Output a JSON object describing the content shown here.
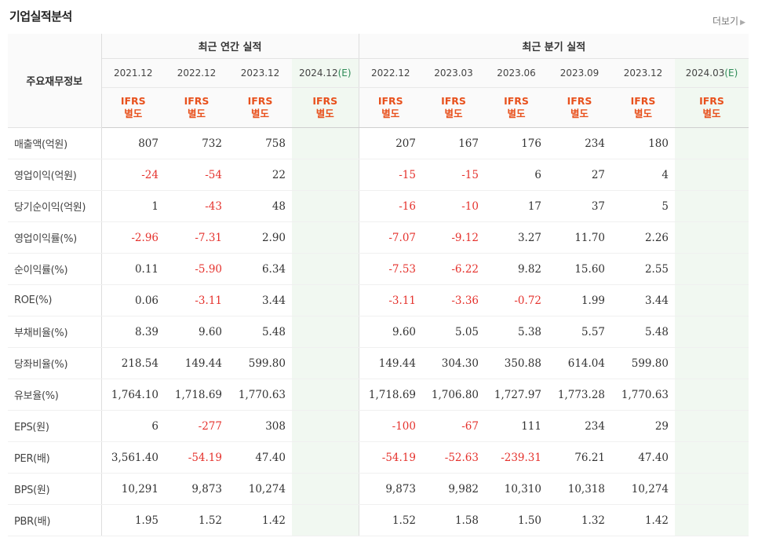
{
  "title": "기업실적분석",
  "more_label": "더보기",
  "header": {
    "row_label": "주요재무정보",
    "annual_group": "최근 연간 실적",
    "quarter_group": "최근 분기 실적",
    "periods": [
      {
        "date": "2021.12",
        "est": ""
      },
      {
        "date": "2022.12",
        "est": ""
      },
      {
        "date": "2023.12",
        "est": ""
      },
      {
        "date": "2024.12",
        "est": "(E)"
      },
      {
        "date": "2022.12",
        "est": ""
      },
      {
        "date": "2023.03",
        "est": ""
      },
      {
        "date": "2023.06",
        "est": ""
      },
      {
        "date": "2023.09",
        "est": ""
      },
      {
        "date": "2023.12",
        "est": ""
      },
      {
        "date": "2024.03",
        "est": "(E)"
      }
    ],
    "basis_line1": "IFRS",
    "basis_line2": "별도"
  },
  "rows": [
    {
      "label": "매출액(억원)",
      "values": [
        "807",
        "732",
        "758",
        "",
        "207",
        "167",
        "176",
        "234",
        "180",
        ""
      ]
    },
    {
      "label": "영업이익(억원)",
      "values": [
        "-24",
        "-54",
        "22",
        "",
        "-15",
        "-15",
        "6",
        "27",
        "4",
        ""
      ]
    },
    {
      "label": "당기순이익(억원)",
      "values": [
        "1",
        "-43",
        "48",
        "",
        "-16",
        "-10",
        "17",
        "37",
        "5",
        ""
      ]
    },
    {
      "label": "영업이익률(%)",
      "values": [
        "-2.96",
        "-7.31",
        "2.90",
        "",
        "-7.07",
        "-9.12",
        "3.27",
        "11.70",
        "2.26",
        ""
      ]
    },
    {
      "label": "순이익률(%)",
      "values": [
        "0.11",
        "-5.90",
        "6.34",
        "",
        "-7.53",
        "-6.22",
        "9.82",
        "15.60",
        "2.55",
        ""
      ]
    },
    {
      "label": "ROE(%)",
      "values": [
        "0.06",
        "-3.11",
        "3.44",
        "",
        "-3.11",
        "-3.36",
        "-0.72",
        "1.99",
        "3.44",
        ""
      ]
    },
    {
      "label": "부채비율(%)",
      "values": [
        "8.39",
        "9.60",
        "5.48",
        "",
        "9.60",
        "5.05",
        "5.38",
        "5.57",
        "5.48",
        ""
      ]
    },
    {
      "label": "당좌비율(%)",
      "values": [
        "218.54",
        "149.44",
        "599.80",
        "",
        "149.44",
        "304.30",
        "350.88",
        "614.04",
        "599.80",
        ""
      ]
    },
    {
      "label": "유보율(%)",
      "values": [
        "1,764.10",
        "1,718.69",
        "1,770.63",
        "",
        "1,718.69",
        "1,706.80",
        "1,727.97",
        "1,773.28",
        "1,770.63",
        ""
      ]
    },
    {
      "label": "EPS(원)",
      "values": [
        "6",
        "-277",
        "308",
        "",
        "-100",
        "-67",
        "111",
        "234",
        "29",
        ""
      ]
    },
    {
      "label": "PER(배)",
      "values": [
        "3,561.40",
        "-54.19",
        "47.40",
        "",
        "-54.19",
        "-52.63",
        "-239.31",
        "76.21",
        "47.40",
        ""
      ]
    },
    {
      "label": "BPS(원)",
      "values": [
        "10,291",
        "9,873",
        "10,274",
        "",
        "9,873",
        "9,982",
        "10,310",
        "10,318",
        "10,274",
        ""
      ]
    },
    {
      "label": "PBR(배)",
      "values": [
        "1.95",
        "1.52",
        "1.42",
        "",
        "1.52",
        "1.58",
        "1.50",
        "1.32",
        "1.42",
        ""
      ]
    }
  ],
  "colors": {
    "negative": "#e5322d",
    "basis": "#e8511d",
    "estimate_bg": "#f1f8f1",
    "estimate_mark": "#2e8b57"
  }
}
